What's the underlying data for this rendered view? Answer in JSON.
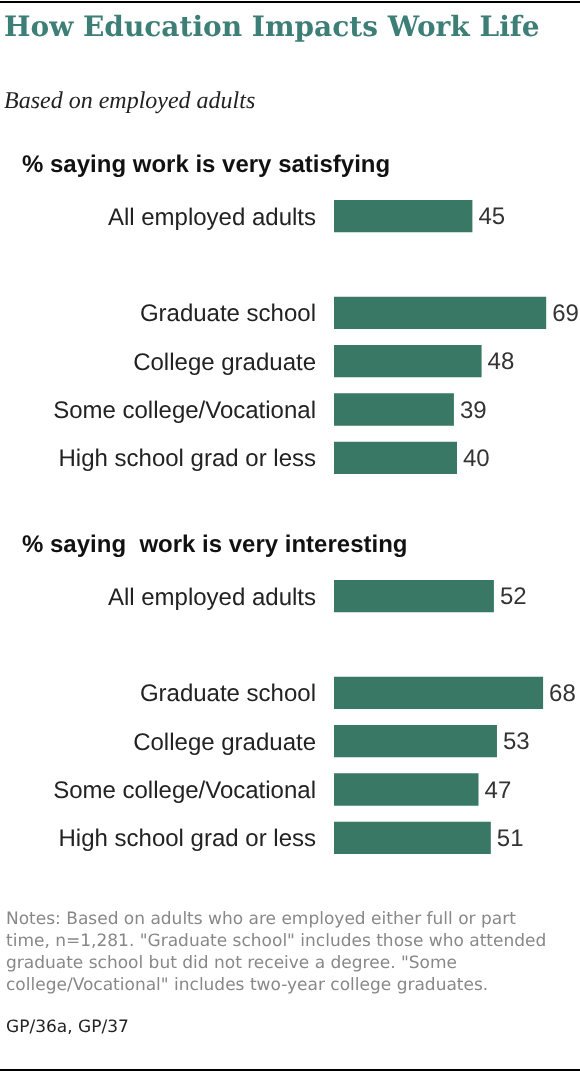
{
  "chart_data": [
    {
      "type": "bar",
      "orientation": "horizontal",
      "title": "How Education Impacts Work Life",
      "subtitle": "Based on employed adults",
      "annotations": [
        "% saying work is very satisfying"
      ],
      "categories": [
        "All employed adults",
        null,
        "Graduate school",
        "College graduate",
        "Some college/Vocational",
        "High school grad or less"
      ],
      "values": [
        45,
        null,
        69,
        48,
        39,
        40
      ],
      "color": "#3a7866",
      "data_labels": true,
      "xlim": [
        0,
        80
      ],
      "tick_labels": "y"
    },
    {
      "type": "bar",
      "orientation": "horizontal",
      "annotations": [
        "% saying  work is very interesting",
        "Notes: Based on adults who are employed either full or part time, n=1,281. \"Graduate school\" includes those who attended graduate school but did not receive a degree. \"Some college/Vocational\" includes two-year college graduates.",
        "GP/36a, GP/37"
      ],
      "categories": [
        "All employed adults",
        null,
        "Graduate school",
        "College graduate",
        "Some college/Vocational",
        "High school grad or less"
      ],
      "values": [
        52,
        null,
        68,
        53,
        47,
        51
      ],
      "color": "#3a7866",
      "data_labels": true,
      "xlim": [
        0,
        80
      ],
      "tick_labels": "y"
    }
  ]
}
